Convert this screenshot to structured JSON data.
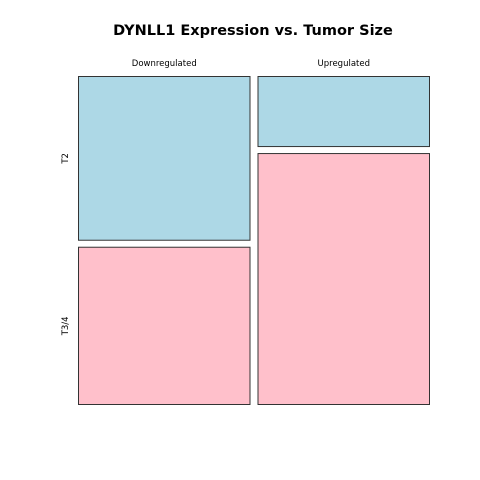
{
  "chart_data": {
    "type": "mosaic",
    "title": "DYNLL1 Expression vs. Tumor Size",
    "columns": [
      "Downregulated",
      "Upregulated"
    ],
    "rows": [
      "T2",
      "T3/4"
    ],
    "column_widths": [
      0.5,
      0.5
    ],
    "row_proportions": [
      [
        0.51,
        0.49
      ],
      [
        0.22,
        0.78
      ]
    ],
    "colors": {
      "T2": "#add8e6",
      "T3/4": "#ffc0cb"
    }
  }
}
